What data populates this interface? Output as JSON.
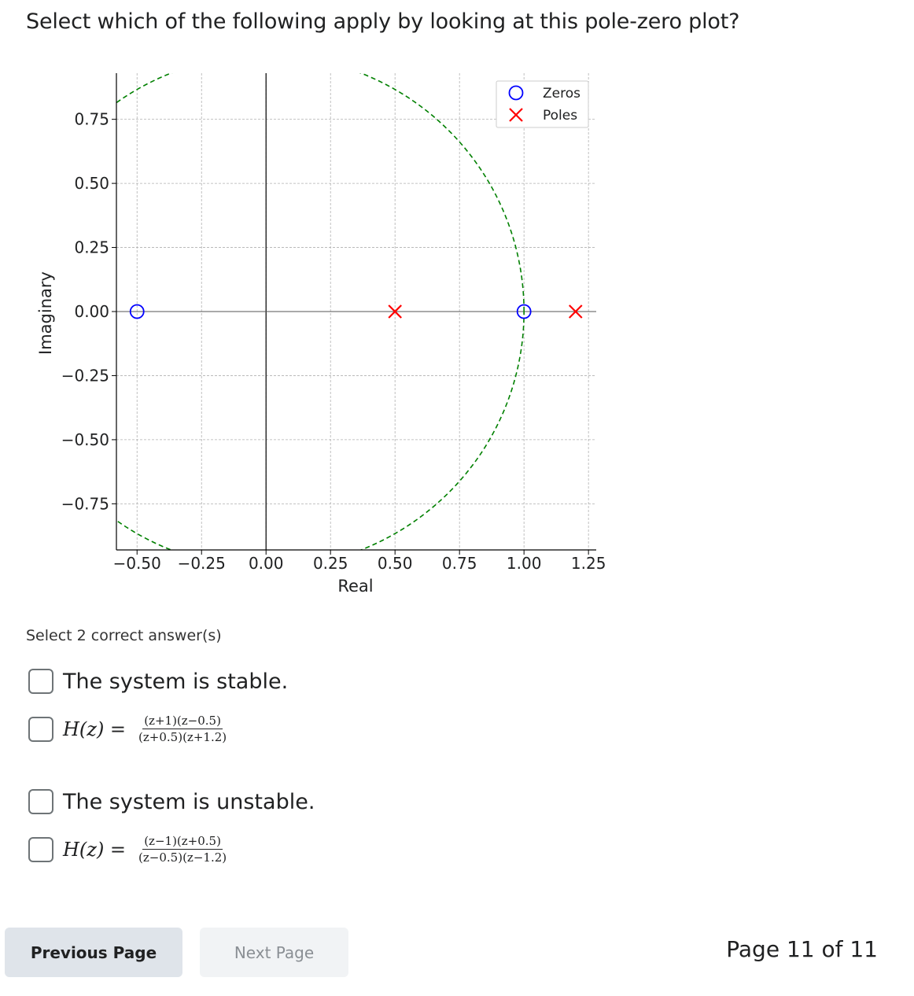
{
  "question": {
    "text": "Select which of the following apply by looking at this pole-zero plot?"
  },
  "chart_data": {
    "type": "scatter",
    "xlabel": "Real",
    "ylabel": "Imaginary",
    "xlim": [
      -0.58,
      1.28
    ],
    "ylim": [
      -0.93,
      0.93
    ],
    "x_ticks": [
      "−0.50",
      "−0.25",
      "0.00",
      "0.25",
      "0.50",
      "0.75",
      "1.00",
      "1.25"
    ],
    "x_tick_values": [
      -0.5,
      -0.25,
      0.0,
      0.25,
      0.5,
      0.75,
      1.0,
      1.25
    ],
    "y_ticks": [
      "0.75",
      "0.50",
      "0.25",
      "0.00",
      "−0.25",
      "−0.50",
      "−0.75"
    ],
    "y_tick_values": [
      0.75,
      0.5,
      0.25,
      0.0,
      -0.25,
      -0.5,
      -0.75
    ],
    "grid": true,
    "legend_position": "top-right",
    "unit_circle": {
      "center": [
        0,
        0
      ],
      "radius": 1,
      "style": "dashed",
      "color": "#008000"
    },
    "series": [
      {
        "name": "Zeros",
        "marker": "circle",
        "color": "#0000ff",
        "points": [
          [
            -0.5,
            0
          ],
          [
            1.0,
            0
          ]
        ]
      },
      {
        "name": "Poles",
        "marker": "x",
        "color": "#ff0000",
        "points": [
          [
            0.5,
            0
          ],
          [
            1.2,
            0
          ]
        ]
      }
    ]
  },
  "answers": {
    "hint": "Select 2 correct answer(s)",
    "options": [
      {
        "text": "The system is stable.",
        "checked": false
      },
      {
        "lhs": "H(z) =",
        "numerator": "(z+1)(z−0.5)",
        "denominator": "(z+0.5)(z+1.2)",
        "checked": false
      },
      {
        "text": "The system is unstable.",
        "checked": false
      },
      {
        "lhs": "H(z) =",
        "numerator": "(z−1)(z+0.5)",
        "denominator": "(z−0.5)(z−1.2)",
        "checked": false
      }
    ]
  },
  "navigation": {
    "previous_label": "Previous Page",
    "next_label": "Next Page",
    "page_indicator": "Page 11 of 11"
  }
}
